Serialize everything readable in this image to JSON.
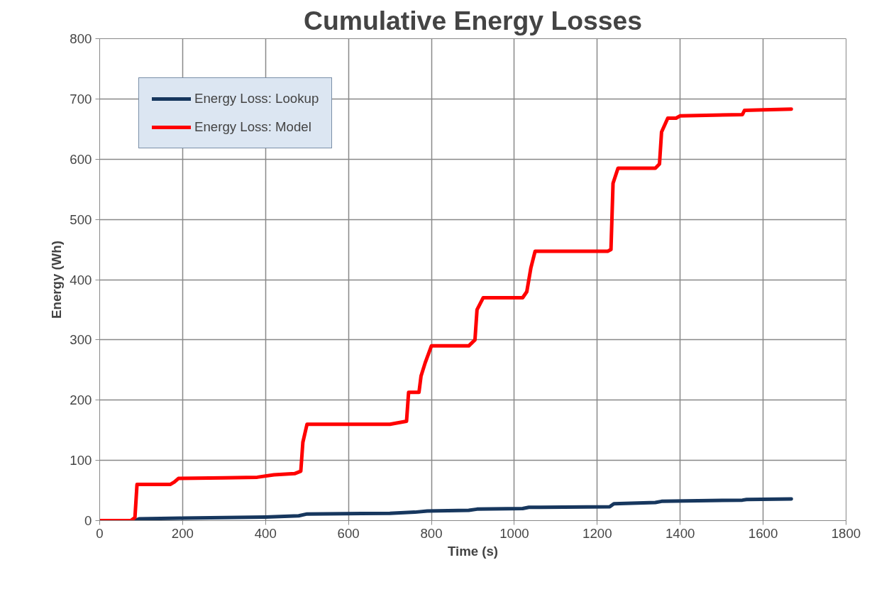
{
  "chart_data": {
    "type": "line",
    "title": "Cumulative Energy Losses",
    "xlabel": "Time (s)",
    "ylabel": "Energy (Wh)",
    "xlim": [
      0,
      1800
    ],
    "xticks": [
      0,
      200,
      400,
      600,
      800,
      1000,
      1200,
      1400,
      1600,
      1800
    ],
    "ylim": [
      0,
      800
    ],
    "yticks": [
      0,
      100,
      200,
      300,
      400,
      500,
      600,
      700,
      800
    ],
    "grid": true,
    "legend": "top left",
    "marker": "none",
    "line_style": "solid",
    "series": [
      {
        "name": "Energy Loss: Lookup",
        "color": "#17375e",
        "x": [
          0,
          85,
          95,
          200,
          400,
          480,
          500,
          700,
          760,
          790,
          890,
          910,
          1020,
          1035,
          1230,
          1240,
          1340,
          1355,
          1550,
          1560,
          1668
        ],
        "values": [
          0,
          0,
          3,
          4,
          6,
          8,
          11,
          12,
          14,
          16,
          17,
          19,
          20,
          22,
          23,
          28,
          30,
          32,
          34,
          35,
          36
        ]
      },
      {
        "name": "Energy Loss: Model",
        "color": "#ff0000",
        "x": [
          0,
          75,
          85,
          90,
          170,
          180,
          190,
          300,
          380,
          420,
          470,
          485,
          490,
          500,
          700,
          740,
          745,
          770,
          775,
          785,
          800,
          890,
          905,
          910,
          925,
          1020,
          1030,
          1040,
          1050,
          1225,
          1233,
          1238,
          1250,
          1340,
          1350,
          1355,
          1370,
          1390,
          1400,
          1550,
          1555,
          1600,
          1668
        ],
        "values": [
          0,
          0,
          5,
          60,
          60,
          64,
          70,
          71,
          72,
          76,
          78,
          82,
          130,
          160,
          160,
          165,
          213,
          213,
          240,
          262,
          290,
          290,
          300,
          350,
          370,
          370,
          380,
          420,
          447,
          447,
          450,
          560,
          585,
          585,
          592,
          645,
          668,
          668,
          672,
          674,
          681,
          682,
          683
        ]
      }
    ]
  }
}
